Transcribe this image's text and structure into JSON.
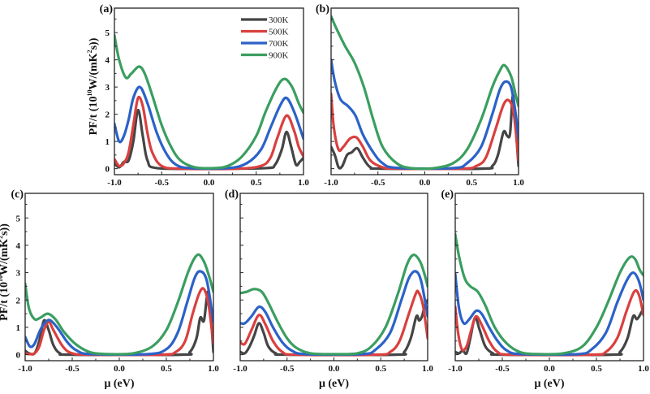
{
  "chart_data": {
    "type": "line",
    "xlabel": "μ (eV)",
    "ylabel": "PF/t (10¹⁰W/(mK²s))",
    "ylabel_parts": {
      "prefix": "PF/t (10",
      "exp1": "10",
      "mid": "W/(mK",
      "exp2": "2",
      "suffix": "s))"
    },
    "xlim": [
      -1.0,
      1.0
    ],
    "ylim": [
      -0.22,
      5.9
    ],
    "xticks": [
      "-1.0",
      "-0.5",
      "0.0",
      "0.5",
      "1.0"
    ],
    "xtick_values": [
      -1.0,
      -0.5,
      0.0,
      0.5,
      1.0
    ],
    "yticks": [
      "0",
      "1",
      "2",
      "3",
      "4",
      "5"
    ],
    "ytick_values": [
      0,
      1,
      2,
      3,
      4,
      5
    ],
    "legend": {
      "placement": "top-right",
      "panel": "a",
      "entries": [
        "300K",
        "500K",
        "700K",
        "900K"
      ]
    },
    "series_colors": {
      "300K": "#454545",
      "500K": "#d9403f",
      "700K": "#2b62c8",
      "900K": "#3a9e60"
    },
    "panels": [
      {
        "label": "(a)",
        "show_yticks": true,
        "show_ylabel": true,
        "show_xlabel": false,
        "series": [
          {
            "name": "300K",
            "x": [
              -1,
              -0.95,
              -0.9,
              -0.85,
              -0.8,
              -0.75,
              -0.7,
              -0.65,
              -0.55,
              0,
              0.6,
              0.7,
              0.77,
              0.82,
              0.87,
              0.92,
              0.96,
              1
            ],
            "y": [
              0.2,
              0.05,
              0.25,
              0.3,
              1.0,
              2.15,
              1.2,
              0.3,
              0.02,
              0,
              0.02,
              0.15,
              0.7,
              1.35,
              0.8,
              0.15,
              0.25,
              0.4
            ]
          },
          {
            "name": "500K",
            "x": [
              -1,
              -0.95,
              -0.9,
              -0.85,
              -0.8,
              -0.75,
              -0.7,
              -0.65,
              -0.6,
              -0.5,
              -0.3,
              0.3,
              0.55,
              0.65,
              0.72,
              0.82,
              0.9,
              0.95,
              1
            ],
            "y": [
              0.35,
              0.1,
              0.2,
              0.6,
              1.6,
              2.6,
              2.3,
              1.3,
              0.6,
              0.1,
              0,
              0,
              0.1,
              0.4,
              1.1,
              1.95,
              1.4,
              0.8,
              0.45
            ]
          },
          {
            "name": "700K",
            "x": [
              -1,
              -0.95,
              -0.9,
              -0.85,
              -0.8,
              -0.73,
              -0.65,
              -0.55,
              -0.45,
              -0.35,
              -0.2,
              0.2,
              0.4,
              0.55,
              0.65,
              0.75,
              0.82,
              0.9,
              1
            ],
            "y": [
              1.65,
              1.0,
              1.2,
              1.8,
              2.6,
              3.0,
              2.4,
              1.3,
              0.55,
              0.15,
              0.02,
              0.02,
              0.2,
              0.7,
              1.5,
              2.3,
              2.6,
              2.1,
              1.1
            ]
          },
          {
            "name": "900K",
            "x": [
              -1,
              -0.95,
              -0.88,
              -0.82,
              -0.74,
              -0.68,
              -0.6,
              -0.5,
              -0.4,
              -0.3,
              -0.15,
              0.05,
              0.2,
              0.35,
              0.5,
              0.6,
              0.72,
              0.8,
              0.88,
              0.95,
              1
            ],
            "y": [
              4.9,
              4.0,
              3.35,
              3.5,
              3.75,
              3.5,
              2.7,
              1.6,
              0.8,
              0.3,
              0.05,
              0.02,
              0.1,
              0.45,
              1.2,
              2.1,
              3.0,
              3.3,
              3.0,
              2.4,
              2.05
            ]
          }
        ]
      },
      {
        "label": "(b)",
        "show_yticks": false,
        "show_ylabel": false,
        "show_xlabel": false,
        "series": [
          {
            "name": "300K",
            "x": [
              -1,
              -0.96,
              -0.92,
              -0.88,
              -0.83,
              -0.78,
              -0.72,
              -0.66,
              -0.58,
              -0.45,
              0.6,
              0.72,
              0.78,
              0.84,
              0.88,
              0.91,
              0.94,
              0.97,
              1
            ],
            "y": [
              0.8,
              0.5,
              0.05,
              0.1,
              0.5,
              0.6,
              0.75,
              0.4,
              0.05,
              0,
              0,
              0.1,
              0.5,
              1.35,
              1.2,
              1.3,
              2.7,
              1.5,
              0.1
            ]
          },
          {
            "name": "500K",
            "x": [
              -1,
              -0.97,
              -0.92,
              -0.87,
              -0.8,
              -0.73,
              -0.66,
              -0.58,
              -0.45,
              -0.3,
              0.4,
              0.55,
              0.65,
              0.75,
              0.84,
              0.9,
              0.95,
              1
            ],
            "y": [
              2.75,
              1.5,
              0.7,
              0.8,
              1.1,
              1.15,
              0.8,
              0.3,
              0.05,
              0,
              0,
              0.1,
              0.4,
              1.4,
              2.35,
              2.5,
              2.0,
              0.3
            ]
          },
          {
            "name": "700K",
            "x": [
              -1,
              -0.96,
              -0.9,
              -0.82,
              -0.74,
              -0.66,
              -0.55,
              -0.45,
              -0.3,
              0.3,
              0.45,
              0.6,
              0.72,
              0.8,
              0.86,
              0.92,
              0.97,
              1
            ],
            "y": [
              4.0,
              3.2,
              2.55,
              2.3,
              1.95,
              1.25,
              0.6,
              0.2,
              0.03,
              0.02,
              0.2,
              0.8,
              2.0,
              2.9,
              3.2,
              3.0,
              2.0,
              1.1
            ]
          },
          {
            "name": "900K",
            "x": [
              -1,
              -0.95,
              -0.85,
              -0.75,
              -0.65,
              -0.55,
              -0.45,
              -0.3,
              -0.15,
              0.1,
              0.3,
              0.45,
              0.6,
              0.72,
              0.8,
              0.85,
              0.92,
              0.97,
              1
            ],
            "y": [
              5.6,
              5.2,
              4.5,
              3.9,
              3.0,
              1.8,
              0.8,
              0.2,
              0.02,
              0.02,
              0.2,
              0.7,
              1.8,
              3.0,
              3.6,
              3.8,
              3.4,
              2.7,
              2.3
            ]
          }
        ]
      },
      {
        "label": "(c)",
        "show_yticks": true,
        "show_ylabel": true,
        "show_xlabel": true,
        "series": [
          {
            "name": "300K",
            "x": [
              -1,
              -0.96,
              -0.9,
              -0.85,
              -0.8,
              -0.75,
              -0.7,
              -0.63,
              -0.5,
              0.65,
              0.75,
              0.82,
              0.86,
              0.9,
              0.94,
              0.97,
              1
            ],
            "y": [
              0.15,
              0.05,
              0.05,
              0.5,
              1.25,
              0.9,
              0.35,
              0.05,
              0,
              0,
              0.1,
              0.6,
              1.35,
              1.25,
              2.3,
              1.5,
              0.1
            ]
          },
          {
            "name": "500K",
            "x": [
              -1,
              -0.95,
              -0.9,
              -0.85,
              -0.8,
              -0.75,
              -0.7,
              -0.6,
              -0.5,
              -0.3,
              0.45,
              0.6,
              0.7,
              0.78,
              0.85,
              0.9,
              0.95,
              1
            ],
            "y": [
              0.05,
              0.02,
              0.05,
              0.3,
              0.9,
              1.2,
              0.9,
              0.3,
              0.05,
              0,
              0,
              0.1,
              0.5,
              1.5,
              2.25,
              2.4,
              1.8,
              0.4
            ]
          },
          {
            "name": "700K",
            "x": [
              -1,
              -0.95,
              -0.9,
              -0.84,
              -0.78,
              -0.73,
              -0.65,
              -0.55,
              -0.45,
              -0.3,
              0.3,
              0.5,
              0.62,
              0.72,
              0.8,
              0.86,
              0.93,
              1
            ],
            "y": [
              0.65,
              0.3,
              0.4,
              0.9,
              1.2,
              1.25,
              0.95,
              0.45,
              0.15,
              0.02,
              0.02,
              0.2,
              0.8,
              1.9,
              2.8,
              3.05,
              2.7,
              1.2
            ]
          },
          {
            "name": "900K",
            "x": [
              -1,
              -0.96,
              -0.9,
              -0.84,
              -0.76,
              -0.68,
              -0.58,
              -0.45,
              -0.3,
              -0.1,
              0.15,
              0.35,
              0.5,
              0.62,
              0.74,
              0.83,
              0.9,
              0.96,
              1
            ],
            "y": [
              2.6,
              1.7,
              1.3,
              1.35,
              1.5,
              1.3,
              0.8,
              0.35,
              0.08,
              0.02,
              0.05,
              0.3,
              0.9,
              1.9,
              3.1,
              3.65,
              3.4,
              2.8,
              2.3
            ]
          }
        ]
      },
      {
        "label": "(d)",
        "show_yticks": false,
        "show_ylabel": false,
        "show_xlabel": true,
        "series": [
          {
            "name": "300K",
            "x": [
              -1,
              -0.95,
              -0.9,
              -0.85,
              -0.8,
              -0.75,
              -0.7,
              -0.62,
              -0.5,
              0.65,
              0.75,
              0.82,
              0.88,
              0.91,
              0.94,
              0.97,
              1
            ],
            "y": [
              0.1,
              0.05,
              0.3,
              0.7,
              1.15,
              0.8,
              0.3,
              0.05,
              0,
              0,
              0.1,
              0.6,
              1.4,
              1.25,
              1.4,
              1.8,
              2.0
            ]
          },
          {
            "name": "500K",
            "x": [
              -1,
              -0.95,
              -0.88,
              -0.8,
              -0.73,
              -0.65,
              -0.55,
              -0.4,
              0.45,
              0.6,
              0.7,
              0.8,
              0.87,
              0.9,
              0.95,
              1
            ],
            "y": [
              0.45,
              0.4,
              0.9,
              1.45,
              1.1,
              0.5,
              0.1,
              0,
              0,
              0.1,
              0.5,
              1.5,
              2.2,
              2.3,
              1.8,
              0.6
            ]
          },
          {
            "name": "700K",
            "x": [
              -1,
              -0.95,
              -0.88,
              -0.8,
              -0.73,
              -0.65,
              -0.55,
              -0.45,
              -0.3,
              0.3,
              0.45,
              0.6,
              0.72,
              0.8,
              0.87,
              0.93,
              1
            ],
            "y": [
              1.15,
              1.15,
              1.4,
              1.75,
              1.55,
              1.0,
              0.45,
              0.15,
              0.02,
              0.02,
              0.2,
              0.8,
              2.0,
              2.8,
              3.05,
              2.7,
              1.4
            ]
          },
          {
            "name": "900K",
            "x": [
              -1,
              -0.93,
              -0.85,
              -0.77,
              -0.7,
              -0.6,
              -0.5,
              -0.4,
              -0.25,
              0,
              0.25,
              0.4,
              0.55,
              0.68,
              0.78,
              0.85,
              0.92,
              0.97,
              1
            ],
            "y": [
              2.25,
              2.3,
              2.4,
              2.3,
              1.9,
              1.2,
              0.6,
              0.25,
              0.05,
              0.02,
              0.05,
              0.3,
              1.0,
              2.2,
              3.3,
              3.65,
              3.4,
              2.9,
              2.5
            ]
          }
        ]
      },
      {
        "label": "(e)",
        "show_yticks": false,
        "show_ylabel": false,
        "show_xlabel": true,
        "series": [
          {
            "name": "300K",
            "x": [
              -1,
              -0.96,
              -0.92,
              -0.88,
              -0.84,
              -0.79,
              -0.74,
              -0.68,
              -0.6,
              -0.5,
              0.65,
              0.75,
              0.83,
              0.89,
              0.93,
              0.97,
              1
            ],
            "y": [
              0.1,
              0.05,
              0.15,
              0.05,
              0.6,
              1.35,
              0.9,
              0.3,
              0.05,
              0,
              0,
              0.1,
              0.6,
              1.4,
              1.3,
              1.5,
              1.7
            ]
          },
          {
            "name": "500K",
            "x": [
              -1,
              -0.97,
              -0.93,
              -0.88,
              -0.83,
              -0.78,
              -0.72,
              -0.64,
              -0.55,
              -0.4,
              0.45,
              0.6,
              0.72,
              0.82,
              0.9,
              0.95,
              1
            ],
            "y": [
              1.75,
              0.8,
              0.2,
              0.3,
              0.9,
              1.4,
              1.1,
              0.5,
              0.1,
              0,
              0,
              0.1,
              0.6,
              1.6,
              2.3,
              2.2,
              1.45
            ]
          },
          {
            "name": "700K",
            "x": [
              -1,
              -0.96,
              -0.91,
              -0.85,
              -0.78,
              -0.72,
              -0.64,
              -0.55,
              -0.45,
              -0.3,
              0.3,
              0.45,
              0.6,
              0.72,
              0.82,
              0.89,
              0.95,
              1
            ],
            "y": [
              2.95,
              1.7,
              1.15,
              1.3,
              1.6,
              1.5,
              1.0,
              0.5,
              0.15,
              0.02,
              0.02,
              0.2,
              0.8,
              1.9,
              2.7,
              3.0,
              2.7,
              2.0
            ]
          },
          {
            "name": "900K",
            "x": [
              -1,
              -0.96,
              -0.9,
              -0.84,
              -0.76,
              -0.68,
              -0.58,
              -0.45,
              -0.3,
              -0.1,
              0.15,
              0.35,
              0.5,
              0.62,
              0.75,
              0.85,
              0.91,
              0.96,
              1
            ],
            "y": [
              4.4,
              3.6,
              2.8,
              2.5,
              2.3,
              1.8,
              1.0,
              0.4,
              0.08,
              0.02,
              0.05,
              0.3,
              1.0,
              1.9,
              3.0,
              3.55,
              3.5,
              3.1,
              2.9
            ]
          }
        ]
      }
    ]
  }
}
